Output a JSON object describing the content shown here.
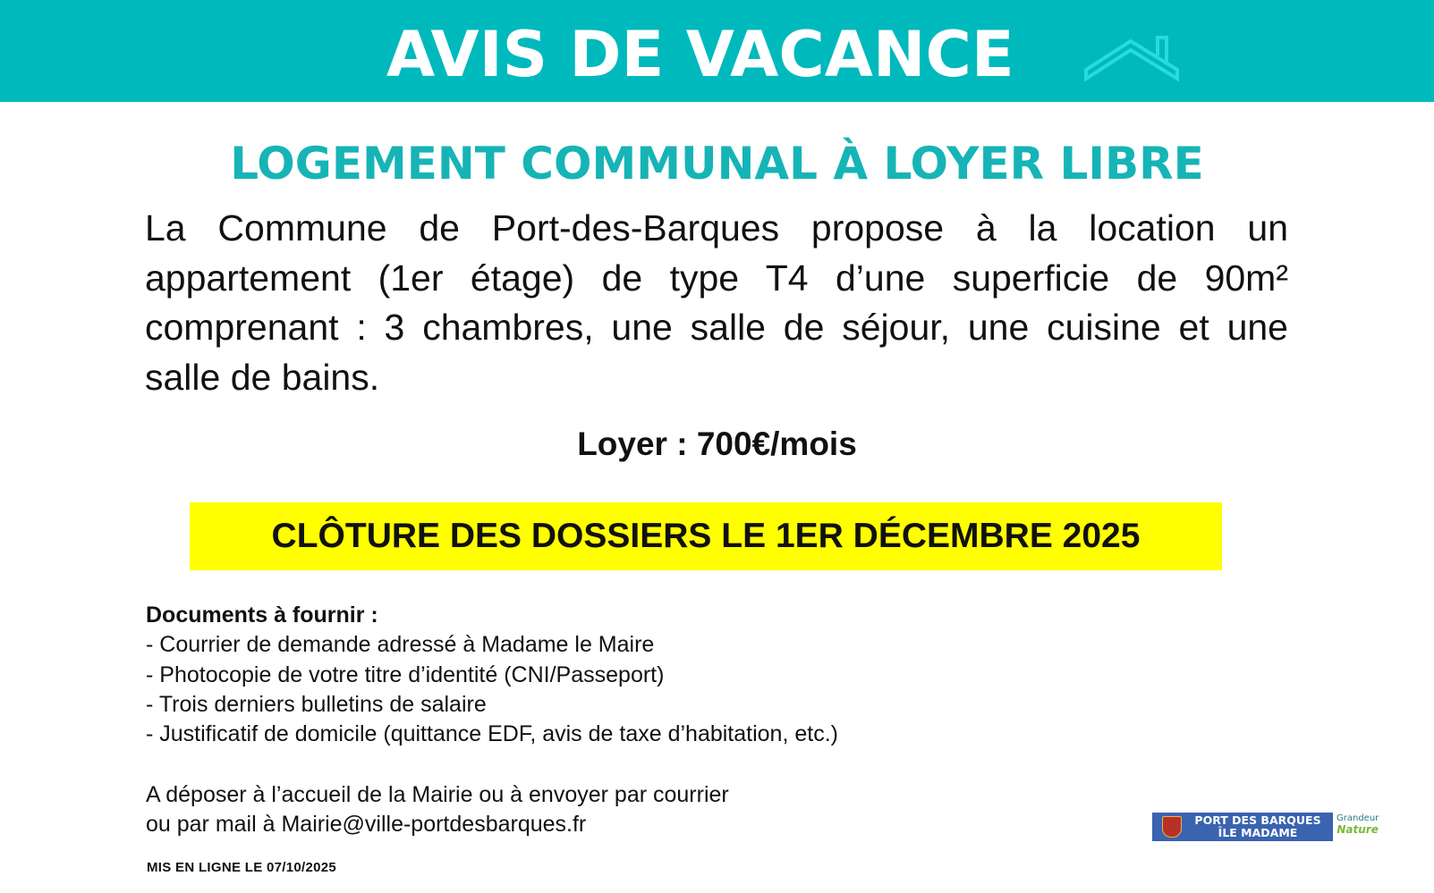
{
  "header": {
    "title": "AVIS DE VACANCE",
    "icon": "house-roof-icon",
    "background": "#00b9bd"
  },
  "subtitle": "LOGEMENT COMMUNAL À LOYER LIBRE",
  "description": "La Commune de Port-des-Barques propose à la location un appartement (1er étage) de type T4 d’une superficie de 90m² comprenant : 3 chambres, une salle de séjour, une cuisine et une salle de bains.",
  "rent": "Loyer : 700€/mois",
  "deadline": {
    "text": "CLÔTURE DES DOSSIERS LE 1ER DÉCEMBRE 2025",
    "background": "#ffff00"
  },
  "documents": {
    "heading": "Documents à fournir :",
    "items": [
      "- Courrier de demande adressé à Madame le Maire",
      "- Photocopie de votre titre d’identité (CNI/Passeport)",
      "- Trois derniers bulletins de salaire",
      "- Justificatif de domicile (quittance EDF, avis de taxe d’habitation, etc.)"
    ]
  },
  "submission": {
    "line1": "A déposer à l’accueil de la Mairie ou à envoyer par courrier",
    "line2": "ou par mail à Mairie@ville-portdesbarques.fr"
  },
  "published": "MIS EN LIGNE LE 07/10/2025",
  "logo": {
    "line1": "PORT DES BARQUES",
    "line2": "ÎLE MADAME",
    "tag1": "Grandeur",
    "tag2": "Nature"
  }
}
